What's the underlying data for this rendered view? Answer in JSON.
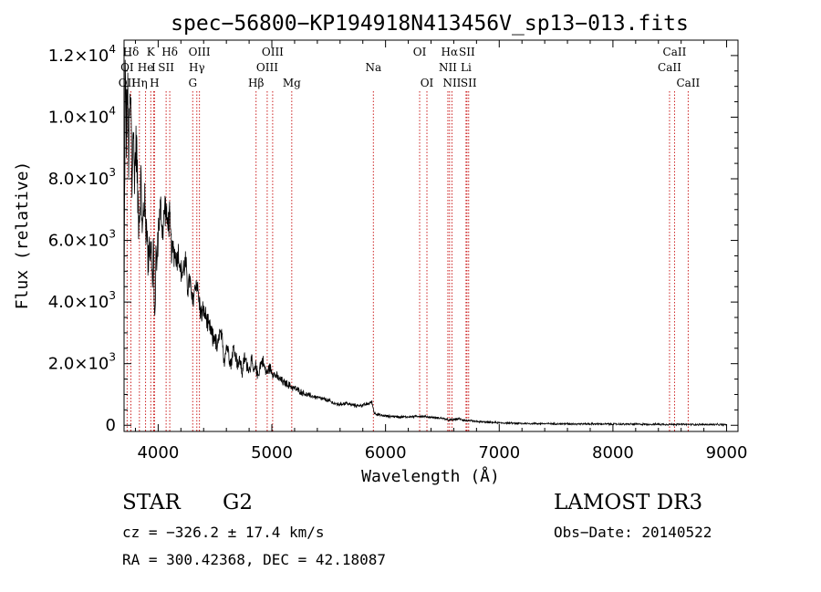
{
  "chart_data": {
    "type": "line",
    "title": "spec−56800−KP194918N413456V_sp13−013.fits",
    "xlabel": "Wavelength (Å)",
    "ylabel": "Flux (relative)",
    "xlim": [
      3700,
      9100
    ],
    "ylim": [
      -200,
      12500
    ],
    "x_ticks": [
      {
        "value": 4000,
        "label": "4000"
      },
      {
        "value": 5000,
        "label": "5000"
      },
      {
        "value": 6000,
        "label": "6000"
      },
      {
        "value": 7000,
        "label": "7000"
      },
      {
        "value": 8000,
        "label": "8000"
      },
      {
        "value": 9000,
        "label": "9000"
      }
    ],
    "y_ticks": [
      {
        "value": 0,
        "mant": "0",
        "exp": ""
      },
      {
        "value": 2000,
        "mant": "2.0×10",
        "exp": "3"
      },
      {
        "value": 4000,
        "mant": "4.0×10",
        "exp": "3"
      },
      {
        "value": 6000,
        "mant": "6.0×10",
        "exp": "3"
      },
      {
        "value": 8000,
        "mant": "8.0×10",
        "exp": "3"
      },
      {
        "value": 10000,
        "mant": "1.0×10",
        "exp": "4"
      },
      {
        "value": 12000,
        "mant": "1.2×10",
        "exp": "4"
      }
    ],
    "series": [
      {
        "name": "flux",
        "x": [
          3700,
          3710,
          3720,
          3730,
          3740,
          3750,
          3760,
          3770,
          3780,
          3790,
          3800,
          3810,
          3820,
          3830,
          3840,
          3850,
          3860,
          3870,
          3880,
          3890,
          3900,
          3910,
          3920,
          3930,
          3940,
          3950,
          3960,
          3970,
          3980,
          3990,
          4000,
          4020,
          4040,
          4060,
          4080,
          4100,
          4120,
          4140,
          4160,
          4180,
          4200,
          4220,
          4240,
          4260,
          4280,
          4300,
          4320,
          4340,
          4360,
          4380,
          4400,
          4420,
          4440,
          4460,
          4480,
          4500,
          4520,
          4540,
          4560,
          4580,
          4600,
          4620,
          4640,
          4660,
          4680,
          4700,
          4720,
          4740,
          4760,
          4780,
          4800,
          4820,
          4840,
          4860,
          4880,
          4900,
          4920,
          4940,
          4960,
          4980,
          5000,
          5050,
          5100,
          5150,
          5200,
          5250,
          5300,
          5350,
          5400,
          5450,
          5500,
          5550,
          5600,
          5650,
          5700,
          5750,
          5800,
          5850,
          5880,
          5900,
          5950,
          6000,
          6100,
          6200,
          6300,
          6400,
          6500,
          6560,
          6600,
          6650,
          6700,
          6800,
          6900,
          7000,
          7200,
          7500,
          8000,
          8500,
          9000
        ],
        "y": [
          3000,
          11200,
          9500,
          10800,
          8600,
          10200,
          10500,
          7600,
          9800,
          8200,
          8800,
          9200,
          7400,
          6800,
          7200,
          8000,
          6000,
          7000,
          7300,
          6500,
          6600,
          5200,
          6100,
          5600,
          5800,
          4400,
          5700,
          3300,
          5500,
          5200,
          6300,
          7100,
          6200,
          7200,
          6500,
          6700,
          5600,
          5700,
          5400,
          5600,
          4900,
          5000,
          5300,
          4500,
          4700,
          3900,
          4400,
          4700,
          4000,
          3600,
          3700,
          3500,
          3200,
          3100,
          2800,
          2900,
          2400,
          3000,
          2800,
          2100,
          2600,
          2400,
          2000,
          2500,
          2300,
          2000,
          2100,
          1700,
          2200,
          2000,
          1800,
          2100,
          1700,
          1900,
          1600,
          2000,
          2100,
          1800,
          1700,
          1900,
          1750,
          1550,
          1400,
          1300,
          1200,
          1100,
          1000,
          950,
          900,
          850,
          800,
          700,
          680,
          720,
          660,
          640,
          650,
          700,
          760,
          400,
          330,
          300,
          280,
          270,
          300,
          260,
          230,
          160,
          190,
          210,
          160,
          120,
          100,
          80,
          60,
          50,
          40,
          30,
          20
        ],
        "noise": [
          900,
          1200,
          1100,
          1050,
          1000,
          950,
          900,
          900,
          850,
          850,
          800,
          800,
          780,
          760,
          740,
          720,
          700,
          700,
          680,
          660,
          640,
          620,
          600,
          600,
          580,
          560,
          560,
          520,
          520,
          520,
          500,
          500,
          480,
          480,
          460,
          460,
          440,
          440,
          420,
          420,
          400,
          400,
          380,
          380,
          360,
          360,
          340,
          340,
          320,
          320,
          300,
          300,
          290,
          290,
          280,
          280,
          270,
          270,
          260,
          260,
          250,
          250,
          240,
          240,
          230,
          230,
          220,
          220,
          210,
          210,
          200,
          200,
          190,
          190,
          180,
          180,
          170,
          170,
          160,
          160,
          150,
          130,
          120,
          110,
          100,
          90,
          80,
          70,
          70,
          60,
          60,
          55,
          55,
          50,
          50,
          45,
          45,
          45,
          45,
          40,
          40,
          35,
          35,
          30,
          30,
          30,
          30,
          30,
          30,
          30,
          30,
          28,
          26,
          25,
          25,
          25,
          25,
          25,
          25
        ]
      }
    ],
    "spectral_lines": [
      {
        "label": "Hδ",
        "wave": 3760,
        "row": 0
      },
      {
        "label": "K",
        "wave": 3935,
        "row": 0
      },
      {
        "label": "Hδ",
        "wave": 4102,
        "row": 0
      },
      {
        "label": "OIII",
        "wave": 4363,
        "row": 0
      },
      {
        "label": "OIII",
        "wave": 5007,
        "row": 0
      },
      {
        "label": "OI",
        "wave": 6300,
        "row": 0
      },
      {
        "label": "Hα",
        "wave": 6563,
        "row": 0
      },
      {
        "label": "SII",
        "wave": 6716,
        "row": 0
      },
      {
        "label": "CaII",
        "wave": 8542,
        "row": 0
      },
      {
        "label": "OI",
        "wave": 3727,
        "row": 1
      },
      {
        "label": "He",
        "wave": 3889,
        "row": 1
      },
      {
        "label": "I",
        "wave": 3960,
        "row": 1
      },
      {
        "label": "SII",
        "wave": 4070,
        "row": 1
      },
      {
        "label": "Hγ",
        "wave": 4340,
        "row": 1
      },
      {
        "label": "OIII",
        "wave": 4959,
        "row": 1
      },
      {
        "label": "Na",
        "wave": 5893,
        "row": 1
      },
      {
        "label": "NII",
        "wave": 6548,
        "row": 1
      },
      {
        "label": "Li",
        "wave": 6708,
        "row": 1
      },
      {
        "label": "CaII",
        "wave": 8498,
        "row": 1
      },
      {
        "label": "OII",
        "wave": 3727,
        "row": 2
      },
      {
        "label": "Hη",
        "wave": 3835,
        "row": 2
      },
      {
        "label": "H",
        "wave": 3968,
        "row": 2
      },
      {
        "label": "G",
        "wave": 4304,
        "row": 2
      },
      {
        "label": "Hβ",
        "wave": 4861,
        "row": 2
      },
      {
        "label": "Mg",
        "wave": 5175,
        "row": 2
      },
      {
        "label": "OI",
        "wave": 6364,
        "row": 2
      },
      {
        "label": "NII",
        "wave": 6584,
        "row": 2
      },
      {
        "label": "SII",
        "wave": 6731,
        "row": 2
      },
      {
        "label": "CaII",
        "wave": 8662,
        "row": 2
      }
    ]
  },
  "info": {
    "class": "STAR",
    "subclass": "G2",
    "survey": "LAMOST DR3",
    "cz": "cz = −326.2 ± 17.4 km/s",
    "obs_date": "Obs−Date: 20140522",
    "coords": "RA = 300.42368, DEC =  42.18087"
  },
  "colors": {
    "line_marker": "#cc2222",
    "spectrum": "#000000",
    "axis": "#000000"
  }
}
